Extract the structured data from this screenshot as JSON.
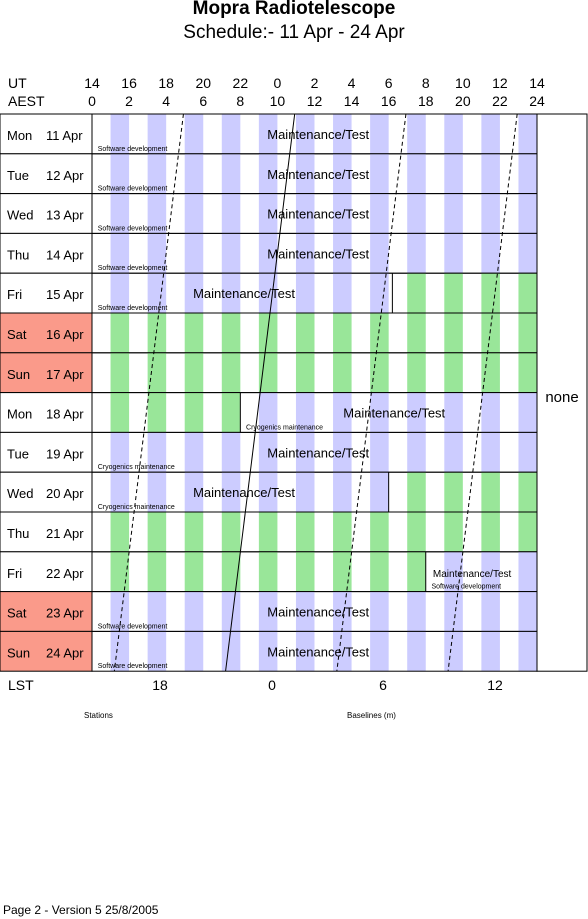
{
  "header": {
    "title": "Mopra Radiotelescope",
    "subtitle": "Schedule:- 11 Apr - 24 Apr"
  },
  "axes": {
    "ut_label": "UT",
    "aest_label": "AEST",
    "ut_ticks": [
      "14",
      "16",
      "18",
      "20",
      "22",
      "0",
      "2",
      "4",
      "6",
      "8",
      "10",
      "12",
      "14"
    ],
    "aest_ticks": [
      "0",
      "2",
      "4",
      "6",
      "8",
      "10",
      "12",
      "14",
      "16",
      "18",
      "20",
      "22",
      "24"
    ],
    "lst_label": "LST",
    "lst_ticks": [
      "18",
      "0",
      "6",
      "12"
    ]
  },
  "side_label": "none",
  "footer_labels": {
    "stations": "Stations",
    "baselines": "Baselines (m)"
  },
  "footer": "Page 2 - Version 5  25/8/2005",
  "colors": {
    "stripe_blue": "#ccccff",
    "stripe_green": "#99e699",
    "weekend": "#fa9a8a"
  },
  "rows": [
    {
      "day": "Mon",
      "date": "11 Apr",
      "weekend": false,
      "segments": [
        {
          "from": 0,
          "to": 24,
          "color": "blue",
          "label": "Maintenance/Test",
          "label_at": 12.2
        }
      ],
      "notes": [
        {
          "text": "Software development",
          "at": 0.2
        }
      ]
    },
    {
      "day": "Tue",
      "date": "12 Apr",
      "weekend": false,
      "segments": [
        {
          "from": 0,
          "to": 24,
          "color": "blue",
          "label": "Maintenance/Test",
          "label_at": 12.2
        }
      ],
      "notes": [
        {
          "text": "Software development",
          "at": 0.2
        }
      ]
    },
    {
      "day": "Wed",
      "date": "13 Apr",
      "weekend": false,
      "segments": [
        {
          "from": 0,
          "to": 24,
          "color": "blue",
          "label": "Maintenance/Test",
          "label_at": 12.2
        }
      ],
      "notes": [
        {
          "text": "Software development",
          "at": 0.2
        }
      ]
    },
    {
      "day": "Thu",
      "date": "14 Apr",
      "weekend": false,
      "segments": [
        {
          "from": 0,
          "to": 24,
          "color": "blue",
          "label": "Maintenance/Test",
          "label_at": 12.2
        }
      ],
      "notes": [
        {
          "text": "Software development",
          "at": 0.2
        }
      ]
    },
    {
      "day": "Fri",
      "date": "15 Apr",
      "weekend": false,
      "segments": [
        {
          "from": 0,
          "to": 16.2,
          "color": "blue",
          "label": "Maintenance/Test",
          "label_at": 8.2
        },
        {
          "from": 16.2,
          "to": 24,
          "color": "green",
          "label": ""
        }
      ],
      "notes": [
        {
          "text": "Software development",
          "at": 0.2
        }
      ]
    },
    {
      "day": "Sat",
      "date": "16 Apr",
      "weekend": true,
      "segments": [
        {
          "from": 0,
          "to": 24,
          "color": "green",
          "label": ""
        }
      ],
      "notes": []
    },
    {
      "day": "Sun",
      "date": "17 Apr",
      "weekend": true,
      "segments": [
        {
          "from": 0,
          "to": 24,
          "color": "green",
          "label": ""
        }
      ],
      "notes": []
    },
    {
      "day": "Mon",
      "date": "18 Apr",
      "weekend": false,
      "segments": [
        {
          "from": 0,
          "to": 8,
          "color": "green",
          "label": ""
        },
        {
          "from": 8,
          "to": 24,
          "color": "blue",
          "label": "Maintenance/Test",
          "label_at": 16.3
        }
      ],
      "notes": [
        {
          "text": "Cryogenics maintenance",
          "at": 8.2
        }
      ]
    },
    {
      "day": "Tue",
      "date": "19 Apr",
      "weekend": false,
      "segments": [
        {
          "from": 0,
          "to": 24,
          "color": "blue",
          "label": "Maintenance/Test",
          "label_at": 12.2
        }
      ],
      "notes": [
        {
          "text": "Cryogenics maintenance",
          "at": 0.2
        }
      ]
    },
    {
      "day": "Wed",
      "date": "20 Apr",
      "weekend": false,
      "segments": [
        {
          "from": 0,
          "to": 16,
          "color": "blue",
          "label": "Maintenance/Test",
          "label_at": 8.2
        },
        {
          "from": 16,
          "to": 24,
          "color": "green",
          "label": ""
        }
      ],
      "notes": [
        {
          "text": "Cryogenics maintenance",
          "at": 0.2
        }
      ]
    },
    {
      "day": "Thu",
      "date": "21 Apr",
      "weekend": false,
      "segments": [
        {
          "from": 0,
          "to": 24,
          "color": "green",
          "label": ""
        }
      ],
      "notes": []
    },
    {
      "day": "Fri",
      "date": "22 Apr",
      "weekend": false,
      "segments": [
        {
          "from": 0,
          "to": 18,
          "color": "green",
          "label": ""
        },
        {
          "from": 18,
          "to": 24,
          "color": "blue",
          "label": "Maintenance/Test",
          "label_at": 20.5
        }
      ],
      "notes": [
        {
          "text": "Software development",
          "at": 18.2
        }
      ]
    },
    {
      "day": "Sat",
      "date": "23 Apr",
      "weekend": true,
      "segments": [
        {
          "from": 0,
          "to": 24,
          "color": "blue",
          "label": "Maintenance/Test",
          "label_at": 12.2
        }
      ],
      "notes": [
        {
          "text": "Software development",
          "at": 0.2
        }
      ]
    },
    {
      "day": "Sun",
      "date": "24 Apr",
      "weekend": true,
      "segments": [
        {
          "from": 0,
          "to": 24,
          "color": "blue",
          "label": "Maintenance/Test",
          "label_at": 12.2
        }
      ],
      "notes": [
        {
          "text": "Software development",
          "at": 0.2
        }
      ]
    }
  ],
  "lst_lines": [
    {
      "lst": "18",
      "style": "dashed",
      "day1_aest": 4.5,
      "shift_per_day": -0.066
    },
    {
      "lst": "0",
      "style": "solid",
      "day1_aest": 10.5,
      "shift_per_day": -0.066
    },
    {
      "lst": "6",
      "style": "dashed",
      "day1_aest": 16.5,
      "shift_per_day": -0.066
    },
    {
      "lst": "12",
      "style": "dashed",
      "day1_aest": 22.5,
      "shift_per_day": -0.066
    }
  ]
}
